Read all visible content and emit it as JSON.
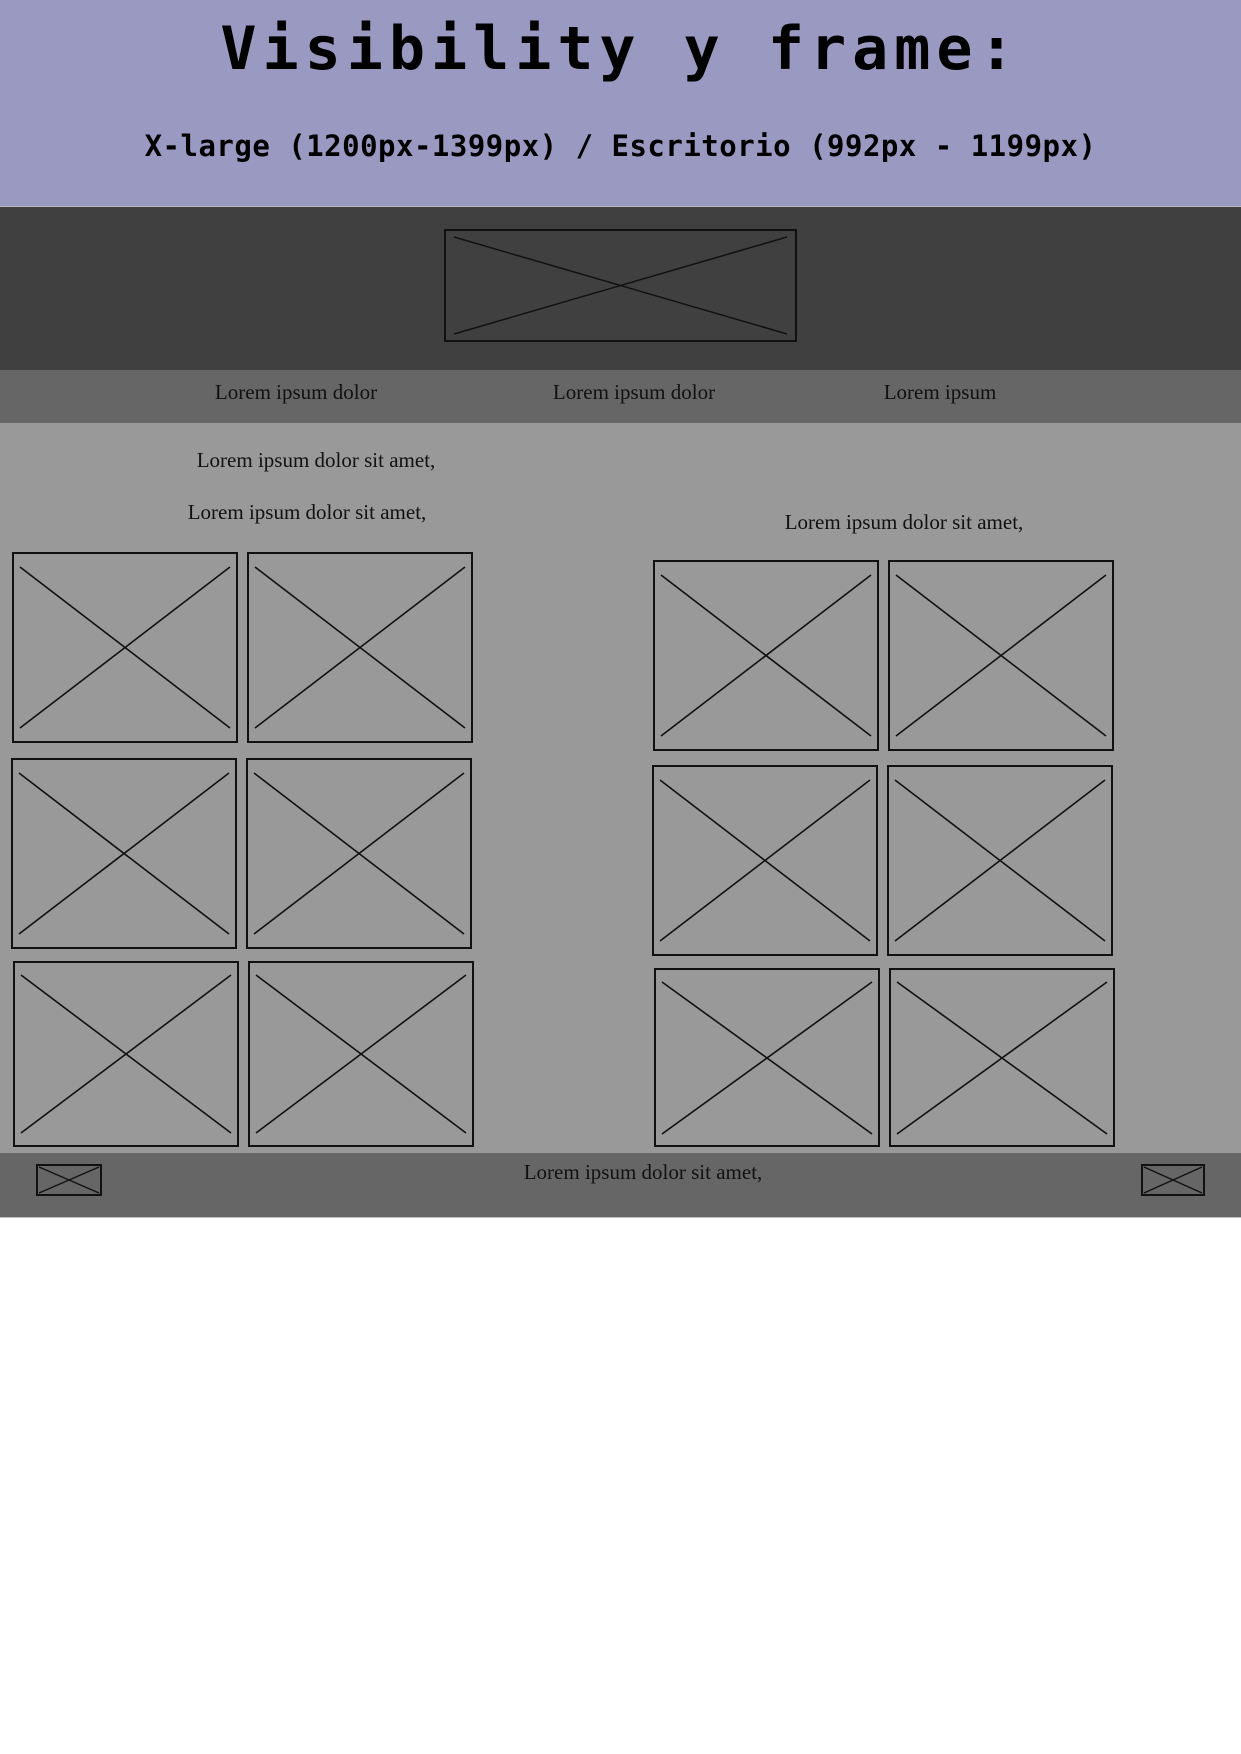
{
  "page": {
    "title": "Visibility y frame:",
    "subtitle": "X-large (1200px-1399px) / Escritorio (992px - 1199px)"
  },
  "nav": {
    "items": [
      {
        "label": "Lorem ipsum dolor"
      },
      {
        "label": "Lorem ipsum dolor"
      },
      {
        "label": "Lorem ipsum"
      }
    ]
  },
  "content": {
    "left_column": {
      "line1": "Lorem ipsum dolor sit amet,",
      "line2": "Lorem ipsum dolor sit amet,"
    },
    "right_column": {
      "line1": "Lorem ipsum dolor sit amet,"
    }
  },
  "footer": {
    "text": "Lorem ipsum dolor sit amet,"
  },
  "colors": {
    "title_bg": "#9999c2",
    "header_bg": "#404040",
    "nav_bg": "#666666",
    "content_bg": "#999999",
    "footer_bg": "#666666",
    "placeholder_stroke": "#111111"
  }
}
